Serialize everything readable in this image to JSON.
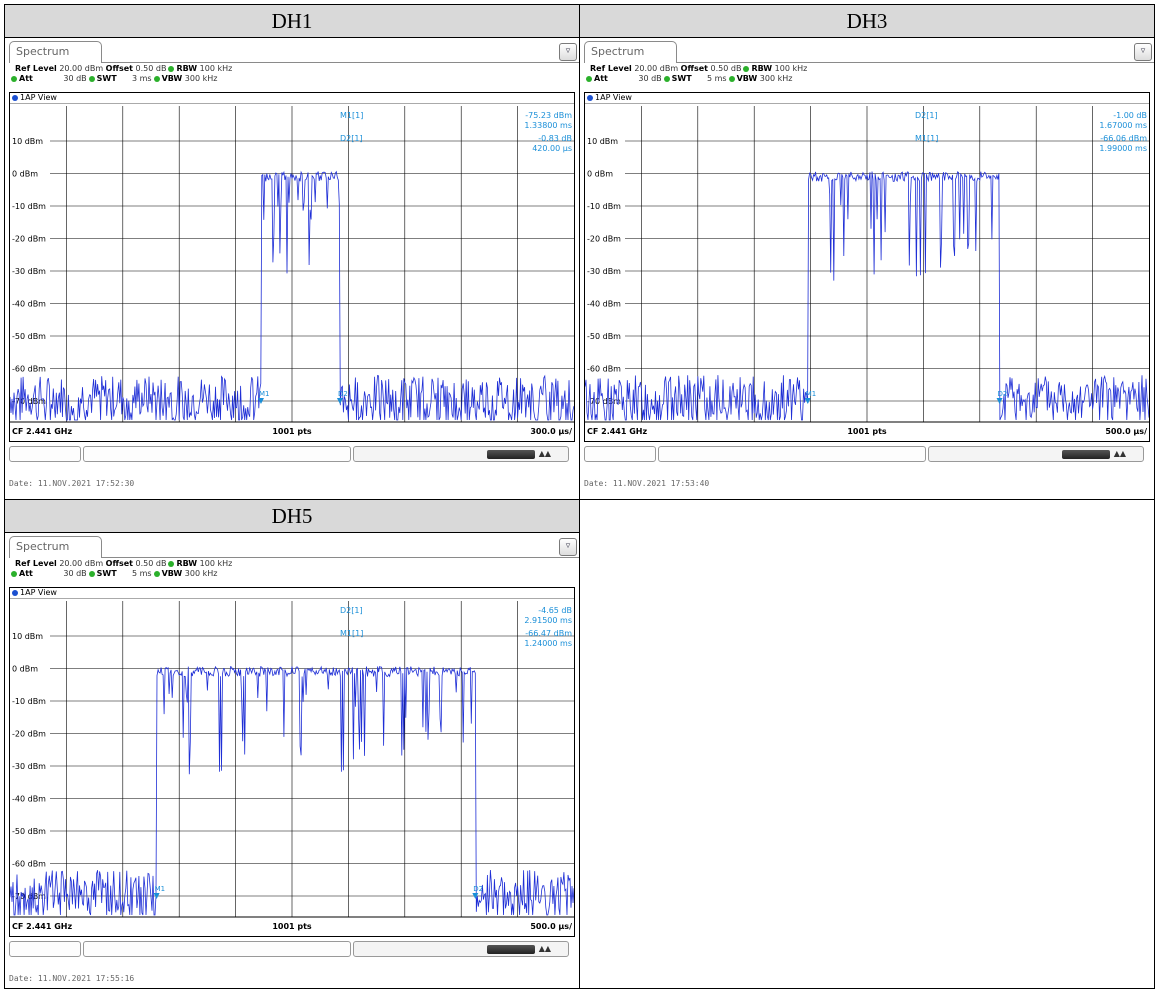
{
  "cells": [
    {
      "title": "DH1",
      "tab": "Spectrum",
      "ref_level_label": "Ref Level",
      "ref_level_value": "20.00 dBm",
      "offset_label": "Offset",
      "offset_value": "0.50 dB",
      "rbw_label": "RBW",
      "rbw_value": "100 kHz",
      "att_label": "Att",
      "att_value": "30 dB",
      "swt_label": "SWT",
      "swt_value": "3 ms",
      "vbw_label": "VBW",
      "vbw_value": "300 kHz",
      "view": "1AP View",
      "markers": [
        {
          "name": "M1[1]",
          "v1": "-75.23 dBm",
          "v2": "1.33800 ms"
        },
        {
          "name": "D2[1]",
          "v1": "-0.83 dB",
          "v2": "420.00 µs"
        }
      ],
      "y_labels": [
        "10 dBm",
        "0 dBm",
        "-10 dBm",
        "-20 dBm",
        "-30 dBm",
        "-40 dBm",
        "-50 dBm",
        "-60 dBm",
        "-70 dBm"
      ],
      "cf": "CF 2.441 GHz",
      "pts": "1001 pts",
      "div": "300.0 µs/",
      "trace_labels": [
        "M1",
        "D2"
      ],
      "date": "Date: 11.NOV.2021  17:52:30"
    },
    {
      "title": "DH3",
      "tab": "Spectrum",
      "ref_level_label": "Ref Level",
      "ref_level_value": "20.00 dBm",
      "offset_label": "Offset",
      "offset_value": "0.50 dB",
      "rbw_label": "RBW",
      "rbw_value": "100 kHz",
      "att_label": "Att",
      "att_value": "30 dB",
      "swt_label": "SWT",
      "swt_value": "5 ms",
      "vbw_label": "VBW",
      "vbw_value": "300 kHz",
      "view": "1AP View",
      "markers": [
        {
          "name": "D2[1]",
          "v1": "-1.00 dB",
          "v2": "1.67000 ms"
        },
        {
          "name": "M1[1]",
          "v1": "-66.06 dBm",
          "v2": "1.99000 ms"
        }
      ],
      "y_labels": [
        "10 dBm",
        "0 dBm",
        "-10 dBm",
        "-20 dBm",
        "-30 dBm",
        "-40 dBm",
        "-50 dBm",
        "-60 dBm",
        "-70 dBm"
      ],
      "cf": "CF 2.441 GHz",
      "pts": "1001 pts",
      "div": "500.0 µs/",
      "trace_labels": [
        "M1",
        "D2"
      ],
      "date": "Date: 11.NOV.2021  17:53:40"
    },
    {
      "title": "DH5",
      "tab": "Spectrum",
      "ref_level_label": "Ref Level",
      "ref_level_value": "20.00 dBm",
      "offset_label": "Offset",
      "offset_value": "0.50 dB",
      "rbw_label": "RBW",
      "rbw_value": "100 kHz",
      "att_label": "Att",
      "att_value": "30 dB",
      "swt_label": "SWT",
      "swt_value": "5 ms",
      "vbw_label": "VBW",
      "vbw_value": "300 kHz",
      "view": "1AP View",
      "markers": [
        {
          "name": "D2[1]",
          "v1": "-4.65 dB",
          "v2": "2.91500 ms"
        },
        {
          "name": "M1[1]",
          "v1": "-66.47 dBm",
          "v2": "1.24000 ms"
        }
      ],
      "y_labels": [
        "10 dBm",
        "0 dBm",
        "-10 dBm",
        "-20 dBm",
        "-30 dBm",
        "-40 dBm",
        "-50 dBm",
        "-60 dBm",
        "-70 dBm"
      ],
      "cf": "CF 2.441 GHz",
      "pts": "1001 pts",
      "div": "500.0 µs/",
      "trace_labels": [
        "M1",
        "D2"
      ],
      "date": "Date: 11.NOV.2021  17:55:16"
    }
  ],
  "colors": {
    "trace": "#1f2fd6",
    "marker": "#1a8fd8",
    "grid": "#000000",
    "header_bg": "#d9d9d9"
  },
  "icons": {
    "corner": "display-config-icon",
    "view_dot": "trace-dot-icon"
  }
}
